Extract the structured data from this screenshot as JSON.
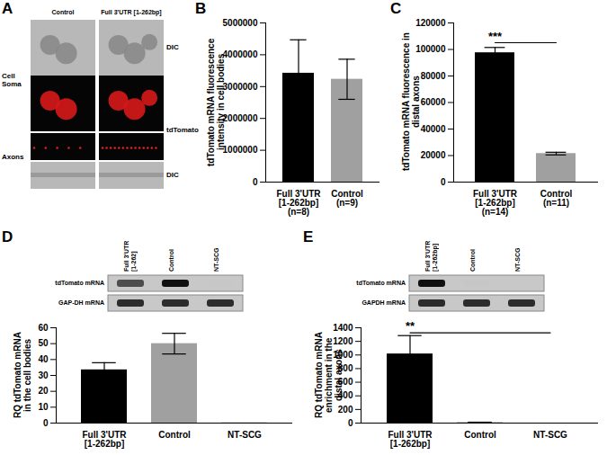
{
  "chart_data": [
    {
      "panel": "A",
      "type": "image",
      "columns": [
        "Control",
        "Full 3'UTR [1-262bp]"
      ],
      "row_labels": [
        "Cell Soma",
        "Axons"
      ],
      "channel_labels": [
        "DIC",
        "tdTomato",
        "DIC"
      ]
    },
    {
      "panel": "B",
      "type": "bar",
      "ylabel": "tdTomato mRNA fluorescence intensity in cell bodies",
      "categories": [
        "Full 3'UTR\n[1-262bp]\n(n=8)",
        "Control\n(n=9)"
      ],
      "values": [
        3420000,
        3230000
      ],
      "errors": [
        1050000,
        630000
      ],
      "colors": [
        "#000000",
        "#a0a0a0"
      ],
      "ylim": [
        0,
        5000000
      ],
      "yticks": [
        0,
        1000000,
        2000000,
        3000000,
        4000000,
        5000000
      ]
    },
    {
      "panel": "C",
      "type": "bar",
      "ylabel": "tdTomato mRNA fluorescence in distal axons",
      "categories": [
        "Full 3'UTR\n[1-262bp]\n(n=14)",
        "Control\n(n=11)"
      ],
      "values": [
        97500,
        21500
      ],
      "errors": [
        4000,
        1000
      ],
      "colors": [
        "#000000",
        "#a0a0a0"
      ],
      "annotation": "***",
      "ylim": [
        0,
        120000
      ],
      "yticks": [
        0,
        20000,
        40000,
        60000,
        80000,
        100000,
        120000
      ]
    },
    {
      "panel": "D",
      "type": "bar",
      "ylabel": "RQ tdTomato mRNA in the cell bodies",
      "categories": [
        "Full 3'UTR\n[1-262bp]",
        "Control",
        "NT-SCG"
      ],
      "values": [
        33.5,
        50,
        0.2
      ],
      "errors": [
        4.5,
        6.5,
        0
      ],
      "colors": [
        "#000000",
        "#a0a0a0",
        "#a0a0a0"
      ],
      "inset": {
        "lanes": [
          "Full 3'UTR [1-262]",
          "Control",
          "NT-SCG"
        ],
        "rows": [
          "tdTomato mRNA",
          "GAP-DH mRNA"
        ]
      },
      "ylim": [
        0,
        60
      ],
      "yticks": [
        0,
        10,
        20,
        30,
        40,
        50,
        60
      ]
    },
    {
      "panel": "E",
      "type": "bar",
      "ylabel": "RQ tdTomato mRNA enrichment in the distal axons",
      "categories": [
        "Full 3'UTR\n[1-262bp]",
        "Control",
        "NT-SCG"
      ],
      "values": [
        1015,
        8,
        0
      ],
      "errors": [
        270,
        5,
        0
      ],
      "colors": [
        "#000000",
        "#a0a0a0",
        "#a0a0a0"
      ],
      "annotation": "**",
      "inset": {
        "lanes": [
          "Full 3'UTR [1-262bp]",
          "Control",
          "NT-SCG"
        ],
        "rows": [
          "tdTomato mRNA",
          "GAPDH mRNA"
        ]
      },
      "ylim": [
        0,
        1400
      ],
      "yticks": [
        0,
        200,
        400,
        600,
        800,
        1000,
        1200,
        1400
      ]
    }
  ]
}
